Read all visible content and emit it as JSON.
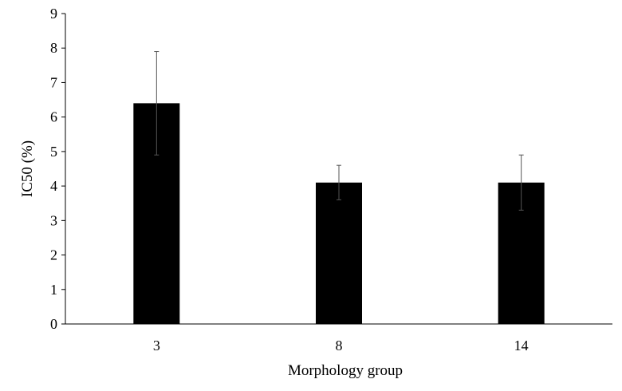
{
  "chart_data": {
    "type": "bar",
    "title": "",
    "xlabel": "Morphology group",
    "ylabel": "IC50 (%)",
    "categories": [
      "3",
      "8",
      "14"
    ],
    "values": [
      6.4,
      4.1,
      4.1
    ],
    "error_low": [
      4.9,
      3.6,
      3.3
    ],
    "error_high": [
      7.9,
      4.6,
      4.9
    ],
    "ylim": [
      0,
      9
    ],
    "yticks": [
      0,
      1,
      2,
      3,
      4,
      5,
      6,
      7,
      8,
      9
    ],
    "grid": false,
    "legend": "none",
    "bar_color": "#000000"
  }
}
